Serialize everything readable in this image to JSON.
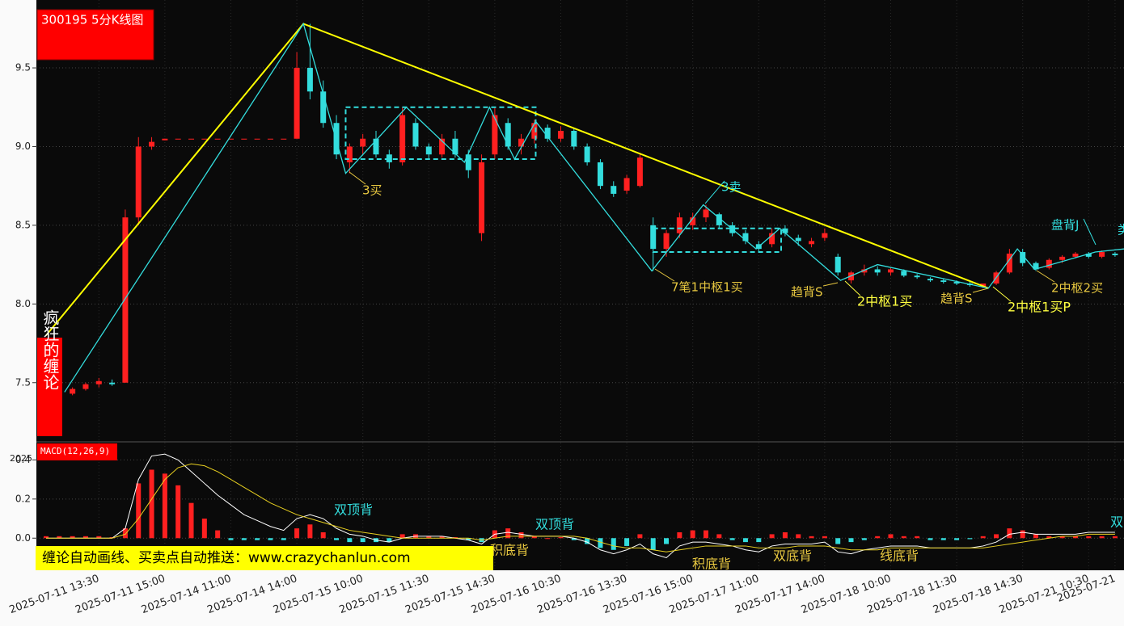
{
  "chart_data": [
    {
      "type": "candlestick",
      "title": "300195 5分K线图",
      "side_label": "疯狂的缠论",
      "banner": "缠论自动画线、买卖点自动推送：www.crazychanlun.com",
      "up_color": "#ff2020",
      "down_color": "#33dddd",
      "categories": [
        null,
        null,
        null,
        null,
        "2025-07-11 13:30",
        null,
        null,
        null,
        null,
        "2025-07-11 15:00",
        null,
        null,
        null,
        null,
        "2025-07-14 11:00",
        null,
        null,
        null,
        null,
        "2025-07-14 14:00",
        null,
        null,
        null,
        null,
        "2025-07-15 10:00",
        null,
        null,
        null,
        null,
        "2025-07-15 11:30",
        null,
        null,
        null,
        null,
        "2025-07-15 14:30",
        null,
        null,
        null,
        null,
        "2025-07-16 10:30",
        null,
        null,
        null,
        null,
        "2025-07-16 13:30",
        null,
        null,
        null,
        null,
        "2025-07-16 15:00",
        null,
        null,
        null,
        null,
        "2025-07-17 11:00",
        null,
        null,
        null,
        null,
        "2025-07-17 14:00",
        null,
        null,
        null,
        null,
        "2025-07-18 10:00",
        null,
        null,
        null,
        null,
        "2025-07-18 11:30",
        null,
        null,
        null,
        null,
        "2025-07-18 14:30",
        null,
        null,
        null,
        null,
        "2025-07-21 10:30",
        null,
        "2025-07-21"
      ],
      "ohlc": [
        [
          7.46,
          7.47,
          7.43,
          7.44
        ],
        [
          7.44,
          7.45,
          7.42,
          7.43
        ],
        [
          7.43,
          7.47,
          7.42,
          7.46
        ],
        [
          7.46,
          7.5,
          7.45,
          7.49
        ],
        [
          7.49,
          7.53,
          7.47,
          7.51
        ],
        [
          7.5,
          7.52,
          7.48,
          7.49
        ],
        [
          7.5,
          8.6,
          7.5,
          8.55
        ],
        [
          8.55,
          9.06,
          8.5,
          9.0
        ],
        [
          9.0,
          9.06,
          8.98,
          9.03
        ],
        [
          9.04,
          9.05,
          9.04,
          9.05
        ],
        [
          9.05,
          9.05,
          9.05,
          9.05
        ],
        [
          9.05,
          9.05,
          9.05,
          9.05
        ],
        [
          9.05,
          9.05,
          9.05,
          9.05
        ],
        [
          9.05,
          9.05,
          9.05,
          9.05
        ],
        [
          9.05,
          9.05,
          9.05,
          9.05
        ],
        [
          9.05,
          9.05,
          9.05,
          9.05
        ],
        [
          9.05,
          9.05,
          9.05,
          9.05
        ],
        [
          9.05,
          9.05,
          9.05,
          9.05
        ],
        [
          9.05,
          9.05,
          9.05,
          9.05
        ],
        [
          9.05,
          9.6,
          9.05,
          9.5
        ],
        [
          9.5,
          9.78,
          9.3,
          9.35
        ],
        [
          9.35,
          9.42,
          9.12,
          9.15
        ],
        [
          9.15,
          9.2,
          8.92,
          8.95
        ],
        [
          8.9,
          9.02,
          8.83,
          9.0
        ],
        [
          9.0,
          9.08,
          8.95,
          9.05
        ],
        [
          9.05,
          9.1,
          8.93,
          8.95
        ],
        [
          8.95,
          8.98,
          8.86,
          8.9
        ],
        [
          8.9,
          9.25,
          8.88,
          9.2
        ],
        [
          9.15,
          9.18,
          8.98,
          9.0
        ],
        [
          9.0,
          9.02,
          8.92,
          8.95
        ],
        [
          8.95,
          9.08,
          8.93,
          9.05
        ],
        [
          9.05,
          9.1,
          8.93,
          8.95
        ],
        [
          8.95,
          8.98,
          8.8,
          8.85
        ],
        [
          8.45,
          8.95,
          8.4,
          8.9
        ],
        [
          8.95,
          9.25,
          8.92,
          9.2
        ],
        [
          9.15,
          9.18,
          8.98,
          9.0
        ],
        [
          9.0,
          9.08,
          8.95,
          9.05
        ],
        [
          9.05,
          9.17,
          9.02,
          9.15
        ],
        [
          9.12,
          9.14,
          9.03,
          9.05
        ],
        [
          9.05,
          9.13,
          9.03,
          9.1
        ],
        [
          9.1,
          9.12,
          8.98,
          9.0
        ],
        [
          9.0,
          9.02,
          8.88,
          8.9
        ],
        [
          8.9,
          8.92,
          8.73,
          8.75
        ],
        [
          8.75,
          8.78,
          8.68,
          8.7
        ],
        [
          8.72,
          8.82,
          8.7,
          8.8
        ],
        [
          8.75,
          8.96,
          8.74,
          8.93
        ],
        [
          8.5,
          8.55,
          8.21,
          8.35
        ],
        [
          8.35,
          8.47,
          8.3,
          8.45
        ],
        [
          8.45,
          8.58,
          8.42,
          8.55
        ],
        [
          8.5,
          8.58,
          8.47,
          8.55
        ],
        [
          8.55,
          8.63,
          8.52,
          8.6
        ],
        [
          8.57,
          8.58,
          8.48,
          8.5
        ],
        [
          8.5,
          8.52,
          8.43,
          8.45
        ],
        [
          8.45,
          8.47,
          8.38,
          8.4
        ],
        [
          8.38,
          8.4,
          8.33,
          8.35
        ],
        [
          8.38,
          8.48,
          8.36,
          8.45
        ],
        [
          8.48,
          8.5,
          8.43,
          8.45
        ],
        [
          8.42,
          8.44,
          8.37,
          8.4
        ],
        [
          8.38,
          8.42,
          8.36,
          8.4
        ],
        [
          8.42,
          8.48,
          8.4,
          8.45
        ],
        [
          8.3,
          8.32,
          8.18,
          8.2
        ],
        [
          8.15,
          8.21,
          8.13,
          8.2
        ],
        [
          8.2,
          8.25,
          8.18,
          8.22
        ],
        [
          8.22,
          8.24,
          8.18,
          8.2
        ],
        [
          8.2,
          8.23,
          8.18,
          8.22
        ],
        [
          8.21,
          8.22,
          8.17,
          8.18
        ],
        [
          8.18,
          8.19,
          8.16,
          8.17
        ],
        [
          8.16,
          8.17,
          8.14,
          8.15
        ],
        [
          8.15,
          8.16,
          8.13,
          8.14
        ],
        [
          8.14,
          8.15,
          8.12,
          8.13
        ],
        [
          8.13,
          8.14,
          8.11,
          8.12
        ],
        [
          8.11,
          8.13,
          8.1,
          8.13
        ],
        [
          8.13,
          8.21,
          8.12,
          8.2
        ],
        [
          8.2,
          8.35,
          8.19,
          8.32
        ],
        [
          8.33,
          8.35,
          8.24,
          8.26
        ],
        [
          8.26,
          8.27,
          8.21,
          8.22
        ],
        [
          8.23,
          8.29,
          8.22,
          8.28
        ],
        [
          8.28,
          8.31,
          8.26,
          8.3
        ],
        [
          8.3,
          8.33,
          8.29,
          8.32
        ],
        [
          8.32,
          8.33,
          8.29,
          8.3
        ],
        [
          8.3,
          8.34,
          8.29,
          8.33
        ],
        [
          8.32,
          8.33,
          8.3,
          8.31
        ]
      ],
      "lines": [
        {
          "color": "#ffff00",
          "x": [
            0,
            19.5,
            71.4
          ],
          "values": [
            7.8,
            9.78,
            8.1
          ]
        },
        {
          "color": "#33dddd",
          "x": [
            1.4,
            19.5,
            22.7,
            27.3,
            31.7,
            33.6,
            35.5,
            37.1,
            45.9,
            49.8,
            53.8,
            55.6,
            60.2,
            63.0,
            71.4,
            73.6,
            74.9,
            79.5,
            81.7
          ],
          "values": [
            7.44,
            9.78,
            8.83,
            9.25,
            8.9,
            9.25,
            8.92,
            9.16,
            8.21,
            8.63,
            8.35,
            8.48,
            8.15,
            8.25,
            8.1,
            8.35,
            8.22,
            8.33,
            8.35
          ]
        }
      ],
      "boxes": [
        {
          "color": "#33dddd",
          "x": [
            22.7,
            37.1
          ],
          "y": [
            8.92,
            9.25
          ]
        },
        {
          "color": "#33dddd",
          "x": [
            46,
            55.7
          ],
          "y": [
            8.33,
            8.48
          ]
        }
      ],
      "annotations": [
        {
          "text": "3买",
          "color": "#e8c840"
        },
        {
          "text": "3卖",
          "color": "#33dddd"
        },
        {
          "text": "7笔1中枢1买",
          "color": "#e8c840"
        },
        {
          "text": "趋背S",
          "color": "#e8c840"
        },
        {
          "text": "2中枢1买",
          "color": "#ffff40"
        },
        {
          "text": "趋背S",
          "color": "#e8c840"
        },
        {
          "text": "2中枢1买P",
          "color": "#ffff40"
        },
        {
          "text": "盘背J",
          "color": "#33dddd"
        },
        {
          "text": "2中枢2买",
          "color": "#e8c840"
        },
        {
          "text": "类",
          "color": "#33dddd"
        }
      ],
      "ylim": [
        7.16,
        9.88
      ],
      "yticks": [
        7.5,
        {
          "value": 8,
          "label": "8.0"
        },
        8.5,
        {
          "value": 9,
          "label": "9.0"
        },
        9.5
      ],
      "grid": true
    },
    {
      "type": "macd",
      "title": "MACD(12,26,9)",
      "corner_label": "2025",
      "up_color": "#ff2020",
      "down_color": "#33dddd",
      "series": [
        {
          "color": "#ffffff",
          "values": [
            0,
            0,
            0,
            0,
            0,
            0,
            0.05,
            0.3,
            0.42,
            0.43,
            0.4,
            0.34,
            0.28,
            0.22,
            0.17,
            0.12,
            0.09,
            0.06,
            0.04,
            0.1,
            0.12,
            0.1,
            0.05,
            0.02,
            0.01,
            -0.01,
            -0.02,
            0,
            0.01,
            0.01,
            0.01,
            0,
            -0.01,
            -0.03,
            0.02,
            0.03,
            0.02,
            0.01,
            0.01,
            0.01,
            0,
            -0.02,
            -0.06,
            -0.08,
            -0.06,
            -0.03,
            -0.08,
            -0.1,
            -0.04,
            -0.02,
            -0.02,
            -0.03,
            -0.04,
            -0.06,
            -0.07,
            -0.04,
            -0.03,
            -0.03,
            -0.03,
            -0.02,
            -0.07,
            -0.08,
            -0.06,
            -0.05,
            -0.04,
            -0.04,
            -0.04,
            -0.05,
            -0.05,
            -0.05,
            -0.05,
            -0.04,
            -0.02,
            0.02,
            0.03,
            0.02,
            0.02,
            0.02,
            0.02,
            0.03,
            0.03,
            0.03
          ]
        },
        {
          "color": "#e8d020",
          "values": [
            0,
            0,
            0,
            0,
            0,
            0,
            0.02,
            0.1,
            0.2,
            0.3,
            0.36,
            0.38,
            0.37,
            0.34,
            0.3,
            0.26,
            0.22,
            0.18,
            0.15,
            0.12,
            0.1,
            0.08,
            0.06,
            0.04,
            0.03,
            0.02,
            0.01,
            0,
            0,
            0,
            0,
            0,
            0,
            -0.01,
            0,
            0.01,
            0.01,
            0.01,
            0.01,
            0.01,
            0.01,
            0,
            -0.02,
            -0.04,
            -0.05,
            -0.05,
            -0.06,
            -0.07,
            -0.06,
            -0.05,
            -0.04,
            -0.04,
            -0.04,
            -0.04,
            -0.05,
            -0.05,
            -0.05,
            -0.04,
            -0.04,
            -0.04,
            -0.05,
            -0.06,
            -0.06,
            -0.06,
            -0.05,
            -0.05,
            -0.05,
            -0.05,
            -0.05,
            -0.05,
            -0.05,
            -0.05,
            -0.04,
            -0.03,
            -0.02,
            -0.01,
            0,
            0.01,
            0.01,
            0.02,
            0.02,
            0.02
          ]
        }
      ],
      "histogram": [
        0.01,
        0.01,
        0.01,
        0.01,
        0.01,
        0.005,
        0.05,
        0.28,
        0.35,
        0.33,
        0.27,
        0.18,
        0.1,
        0.04,
        -0.01,
        -0.01,
        -0.01,
        -0.01,
        -0.01,
        0.05,
        0.07,
        0.03,
        -0.01,
        -0.02,
        -0.02,
        -0.02,
        -0.02,
        0.02,
        0.02,
        0.01,
        0.01,
        0.005,
        -0.01,
        -0.02,
        0.04,
        0.05,
        0.03,
        0.01,
        0,
        0.005,
        -0.01,
        -0.03,
        -0.05,
        -0.06,
        -0.04,
        0.02,
        -0.06,
        -0.03,
        0.03,
        0.04,
        0.04,
        0.02,
        -0.01,
        -0.02,
        -0.02,
        0.02,
        0.03,
        0.02,
        0.01,
        0.01,
        -0.03,
        -0.02,
        -0.01,
        0.01,
        0.02,
        0.01,
        0.01,
        -0.01,
        -0.01,
        -0.01,
        -0.005,
        0.01,
        0.02,
        0.05,
        0.04,
        0.02,
        0.01,
        0.01,
        0.01,
        0.01,
        0.01,
        0.01
      ],
      "annotations": [
        {
          "text": "双顶背",
          "color": "#33dddd"
        },
        {
          "text": "双顶背",
          "color": "#33dddd"
        },
        {
          "text": "积底背",
          "color": "#e8c840"
        },
        {
          "text": "积底背",
          "color": "#e8c840"
        },
        {
          "text": "双底背",
          "color": "#e8c840"
        },
        {
          "text": "线底背",
          "color": "#e8c840"
        },
        {
          "text": "双",
          "color": "#33dddd"
        }
      ],
      "ylim": [
        -0.16,
        0.48
      ],
      "yticks": [
        {
          "value": 0,
          "label": "0.0"
        },
        0.2,
        0.4
      ],
      "grid": true
    }
  ]
}
